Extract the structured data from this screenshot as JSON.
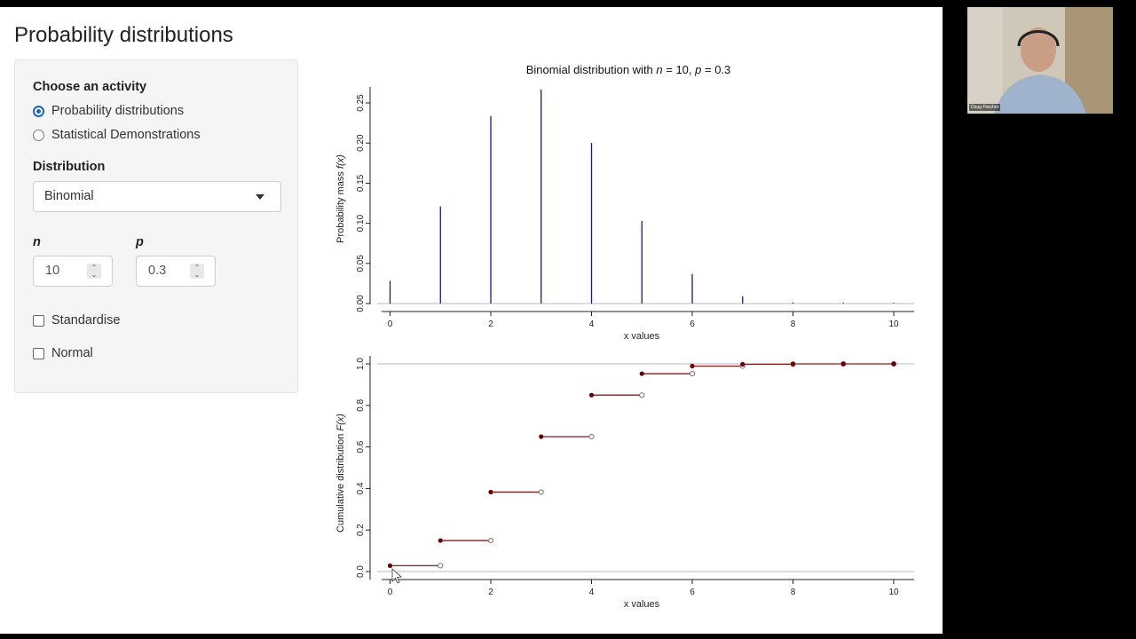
{
  "app": {
    "title": "Probability distributions"
  },
  "sidebar": {
    "activity_label": "Choose an activity",
    "activities": [
      {
        "label": "Probability distributions",
        "selected": true
      },
      {
        "label": "Statistical Demonstrations",
        "selected": false
      }
    ],
    "distribution_label": "Distribution",
    "distribution_value": "Binomial",
    "params": [
      {
        "name": "n",
        "value": "10"
      },
      {
        "name": "p",
        "value": "0.3"
      }
    ],
    "checkboxes": [
      {
        "label": "Standardise",
        "checked": false
      },
      {
        "label": "Normal",
        "checked": false
      }
    ]
  },
  "webcam": {
    "name": "Doug Fletcher"
  },
  "colors": {
    "pmf_line": "#1a1a6e",
    "cdf_step": "#8b1a1a",
    "cdf_point": "#6b0000",
    "accent": "#1565c0"
  },
  "chart_data": [
    {
      "type": "bar",
      "title_parts": [
        "Binomial distribution with ",
        "n",
        " = 10, ",
        "p",
        " = 0.3"
      ],
      "xlabel": "x values",
      "ylabel_parts": [
        "Probability mass ",
        "f(x)"
      ],
      "x": [
        0,
        1,
        2,
        3,
        4,
        5,
        6,
        7,
        8,
        9,
        10
      ],
      "values": [
        0.0282,
        0.1211,
        0.2335,
        0.2668,
        0.2001,
        0.1029,
        0.0368,
        0.009,
        0.0014,
        0.0001,
        0.0
      ],
      "xticks": [
        "0",
        "2",
        "4",
        "6",
        "8",
        "10"
      ],
      "yticks": [
        "0.00",
        "0.05",
        "0.10",
        "0.15",
        "0.20",
        "0.25"
      ],
      "xlim": [
        0,
        10
      ],
      "ylim": [
        0,
        0.25
      ]
    },
    {
      "type": "line",
      "xlabel": "x values",
      "ylabel_parts": [
        "Cumulative distribution  ",
        "F(x)"
      ],
      "x": [
        0,
        1,
        2,
        3,
        4,
        5,
        6,
        7,
        8,
        9,
        10
      ],
      "values": [
        0.0282,
        0.1493,
        0.3828,
        0.6496,
        0.8497,
        0.9527,
        0.9894,
        0.9984,
        0.9999,
        1.0,
        1.0
      ],
      "xticks": [
        "0",
        "2",
        "4",
        "6",
        "8",
        "10"
      ],
      "yticks": [
        "0.0",
        "0.2",
        "0.4",
        "0.6",
        "0.8",
        "1.0"
      ],
      "xlim": [
        0,
        10
      ],
      "ylim": [
        0,
        1
      ]
    }
  ]
}
